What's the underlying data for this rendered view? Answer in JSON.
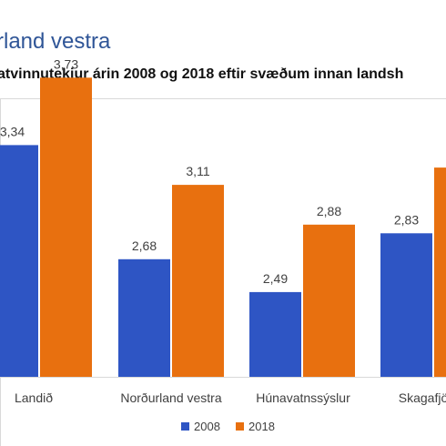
{
  "header": {
    "title": "rland vestra",
    "subtitle": "atvinnutekjur árin 2008 og 2018 eftir svæðum innan landsh"
  },
  "chart_data": {
    "type": "bar",
    "categories": [
      "Landið",
      "Norðurland vestra",
      "Húnavatnssýslur",
      "Skagafjö"
    ],
    "series": [
      {
        "name": "2008",
        "values": [
          3.34,
          2.68,
          2.49,
          2.83
        ],
        "labels": [
          "3,34",
          "2,68",
          "2,49",
          "2,83"
        ],
        "color": "#2e55c4"
      },
      {
        "name": "2018",
        "values": [
          3.73,
          3.11,
          2.88,
          3.21
        ],
        "labels": [
          "3,73",
          "3,11",
          "2,88",
          ""
        ],
        "color": "#e8700f"
      }
    ],
    "ylim": [
      2.0,
      4.0
    ],
    "legend_position": "bottom",
    "grid": false
  }
}
